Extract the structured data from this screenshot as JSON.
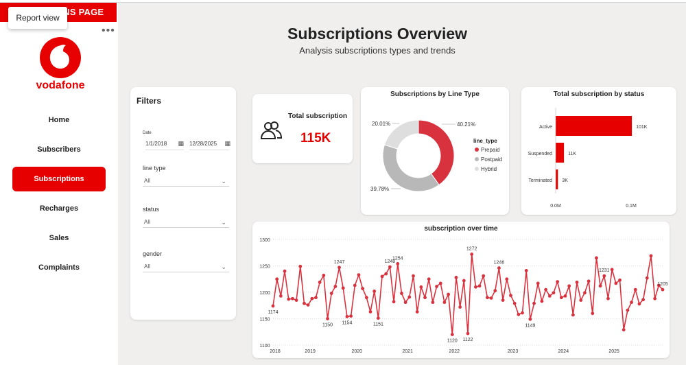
{
  "top": {
    "tooltip": "Report view",
    "page_label": "ONS PAGE"
  },
  "logo": {
    "text": "vodafone"
  },
  "nav": [
    {
      "label": "Home"
    },
    {
      "label": "Subscribers"
    },
    {
      "label": "Subscriptions"
    },
    {
      "label": "Recharges"
    },
    {
      "label": "Sales"
    },
    {
      "label": "Complaints"
    }
  ],
  "header": {
    "title": "Subscriptions Overview",
    "subtitle": "Analysis subscriptions types and trends"
  },
  "filters": {
    "title": "Filters",
    "date_label": "Date",
    "date_from": "1/1/2018",
    "date_to": "12/28/2025",
    "line_type_label": "line type",
    "line_type_value": "All",
    "status_label": "status",
    "status_value": "All",
    "gender_label": "gender",
    "gender_value": "All"
  },
  "kpi": {
    "title": "Total subscription",
    "value": "115K"
  },
  "colors": {
    "brand": "#e60000",
    "line": "#d9323f",
    "postpaid": "#b8b8b8",
    "hybrid": "#dedede"
  },
  "chart_data": [
    {
      "type": "pie",
      "title": "Subscriptions by Line Type",
      "legend_title": "line_type",
      "slices": [
        {
          "name": "Prepaid",
          "value": 40.21,
          "label": "40.21%"
        },
        {
          "name": "Postpaid",
          "value": 39.78,
          "label": "39.78%"
        },
        {
          "name": "Hybrid",
          "value": 20.01,
          "label": "20.01%"
        }
      ]
    },
    {
      "type": "bar",
      "title": "Total subscription by status",
      "categories": [
        "Active",
        "Suspended",
        "Terminated"
      ],
      "values": [
        101000,
        11000,
        3000
      ],
      "data_labels": [
        "101K",
        "11K",
        "3K"
      ],
      "x_ticks": [
        "0.0M",
        "0.1M"
      ],
      "xlim": [
        0,
        100000
      ]
    },
    {
      "type": "line",
      "title": "subscription over time",
      "ylim": [
        1100,
        1300
      ],
      "y_ticks": [
        "1100",
        "1150",
        "1200",
        "1250",
        "1300"
      ],
      "x_ticks": [
        "2018",
        "2019",
        "2020",
        "2021",
        "2022",
        "2023",
        "2024",
        "2025"
      ],
      "values": [
        1174,
        1225,
        1193,
        1240,
        1187,
        1188,
        1185,
        1249,
        1179,
        1176,
        1188,
        1190,
        1219,
        1232,
        1150,
        1198,
        1211,
        1247,
        1208,
        1154,
        1155,
        1213,
        1233,
        1207,
        1190,
        1163,
        1202,
        1151,
        1230,
        1235,
        1248,
        1182,
        1254,
        1198,
        1181,
        1191,
        1231,
        1163,
        1210,
        1190,
        1225,
        1181,
        1211,
        1217,
        1181,
        1196,
        1120,
        1228,
        1172,
        1222,
        1122,
        1272,
        1210,
        1212,
        1231,
        1190,
        1189,
        1203,
        1246,
        1185,
        1225,
        1194,
        1179,
        1158,
        1161,
        1241,
        1149,
        1179,
        1217,
        1183,
        1205,
        1193,
        1199,
        1220,
        1190,
        1193,
        1212,
        1157,
        1219,
        1185,
        1199,
        1221,
        1160,
        1265,
        1212,
        1231,
        1188,
        1243,
        1217,
        1223,
        1129,
        1166,
        1181,
        1205,
        1178,
        1186,
        1227,
        1269,
        1188,
        1213,
        1205
      ],
      "point_labels": [
        {
          "index": 0,
          "text": "1174"
        },
        {
          "index": 14,
          "text": "1150"
        },
        {
          "index": 17,
          "text": "1247"
        },
        {
          "index": 19,
          "text": "1154"
        },
        {
          "index": 27,
          "text": "1151"
        },
        {
          "index": 30,
          "text": "1248"
        },
        {
          "index": 32,
          "text": "1254"
        },
        {
          "index": 46,
          "text": "1120"
        },
        {
          "index": 50,
          "text": "1122"
        },
        {
          "index": 51,
          "text": "1272"
        },
        {
          "index": 58,
          "text": "1246"
        },
        {
          "index": 66,
          "text": "1149"
        },
        {
          "index": 85,
          "text": "1231"
        },
        {
          "index": 100,
          "text": "1205"
        }
      ]
    }
  ]
}
